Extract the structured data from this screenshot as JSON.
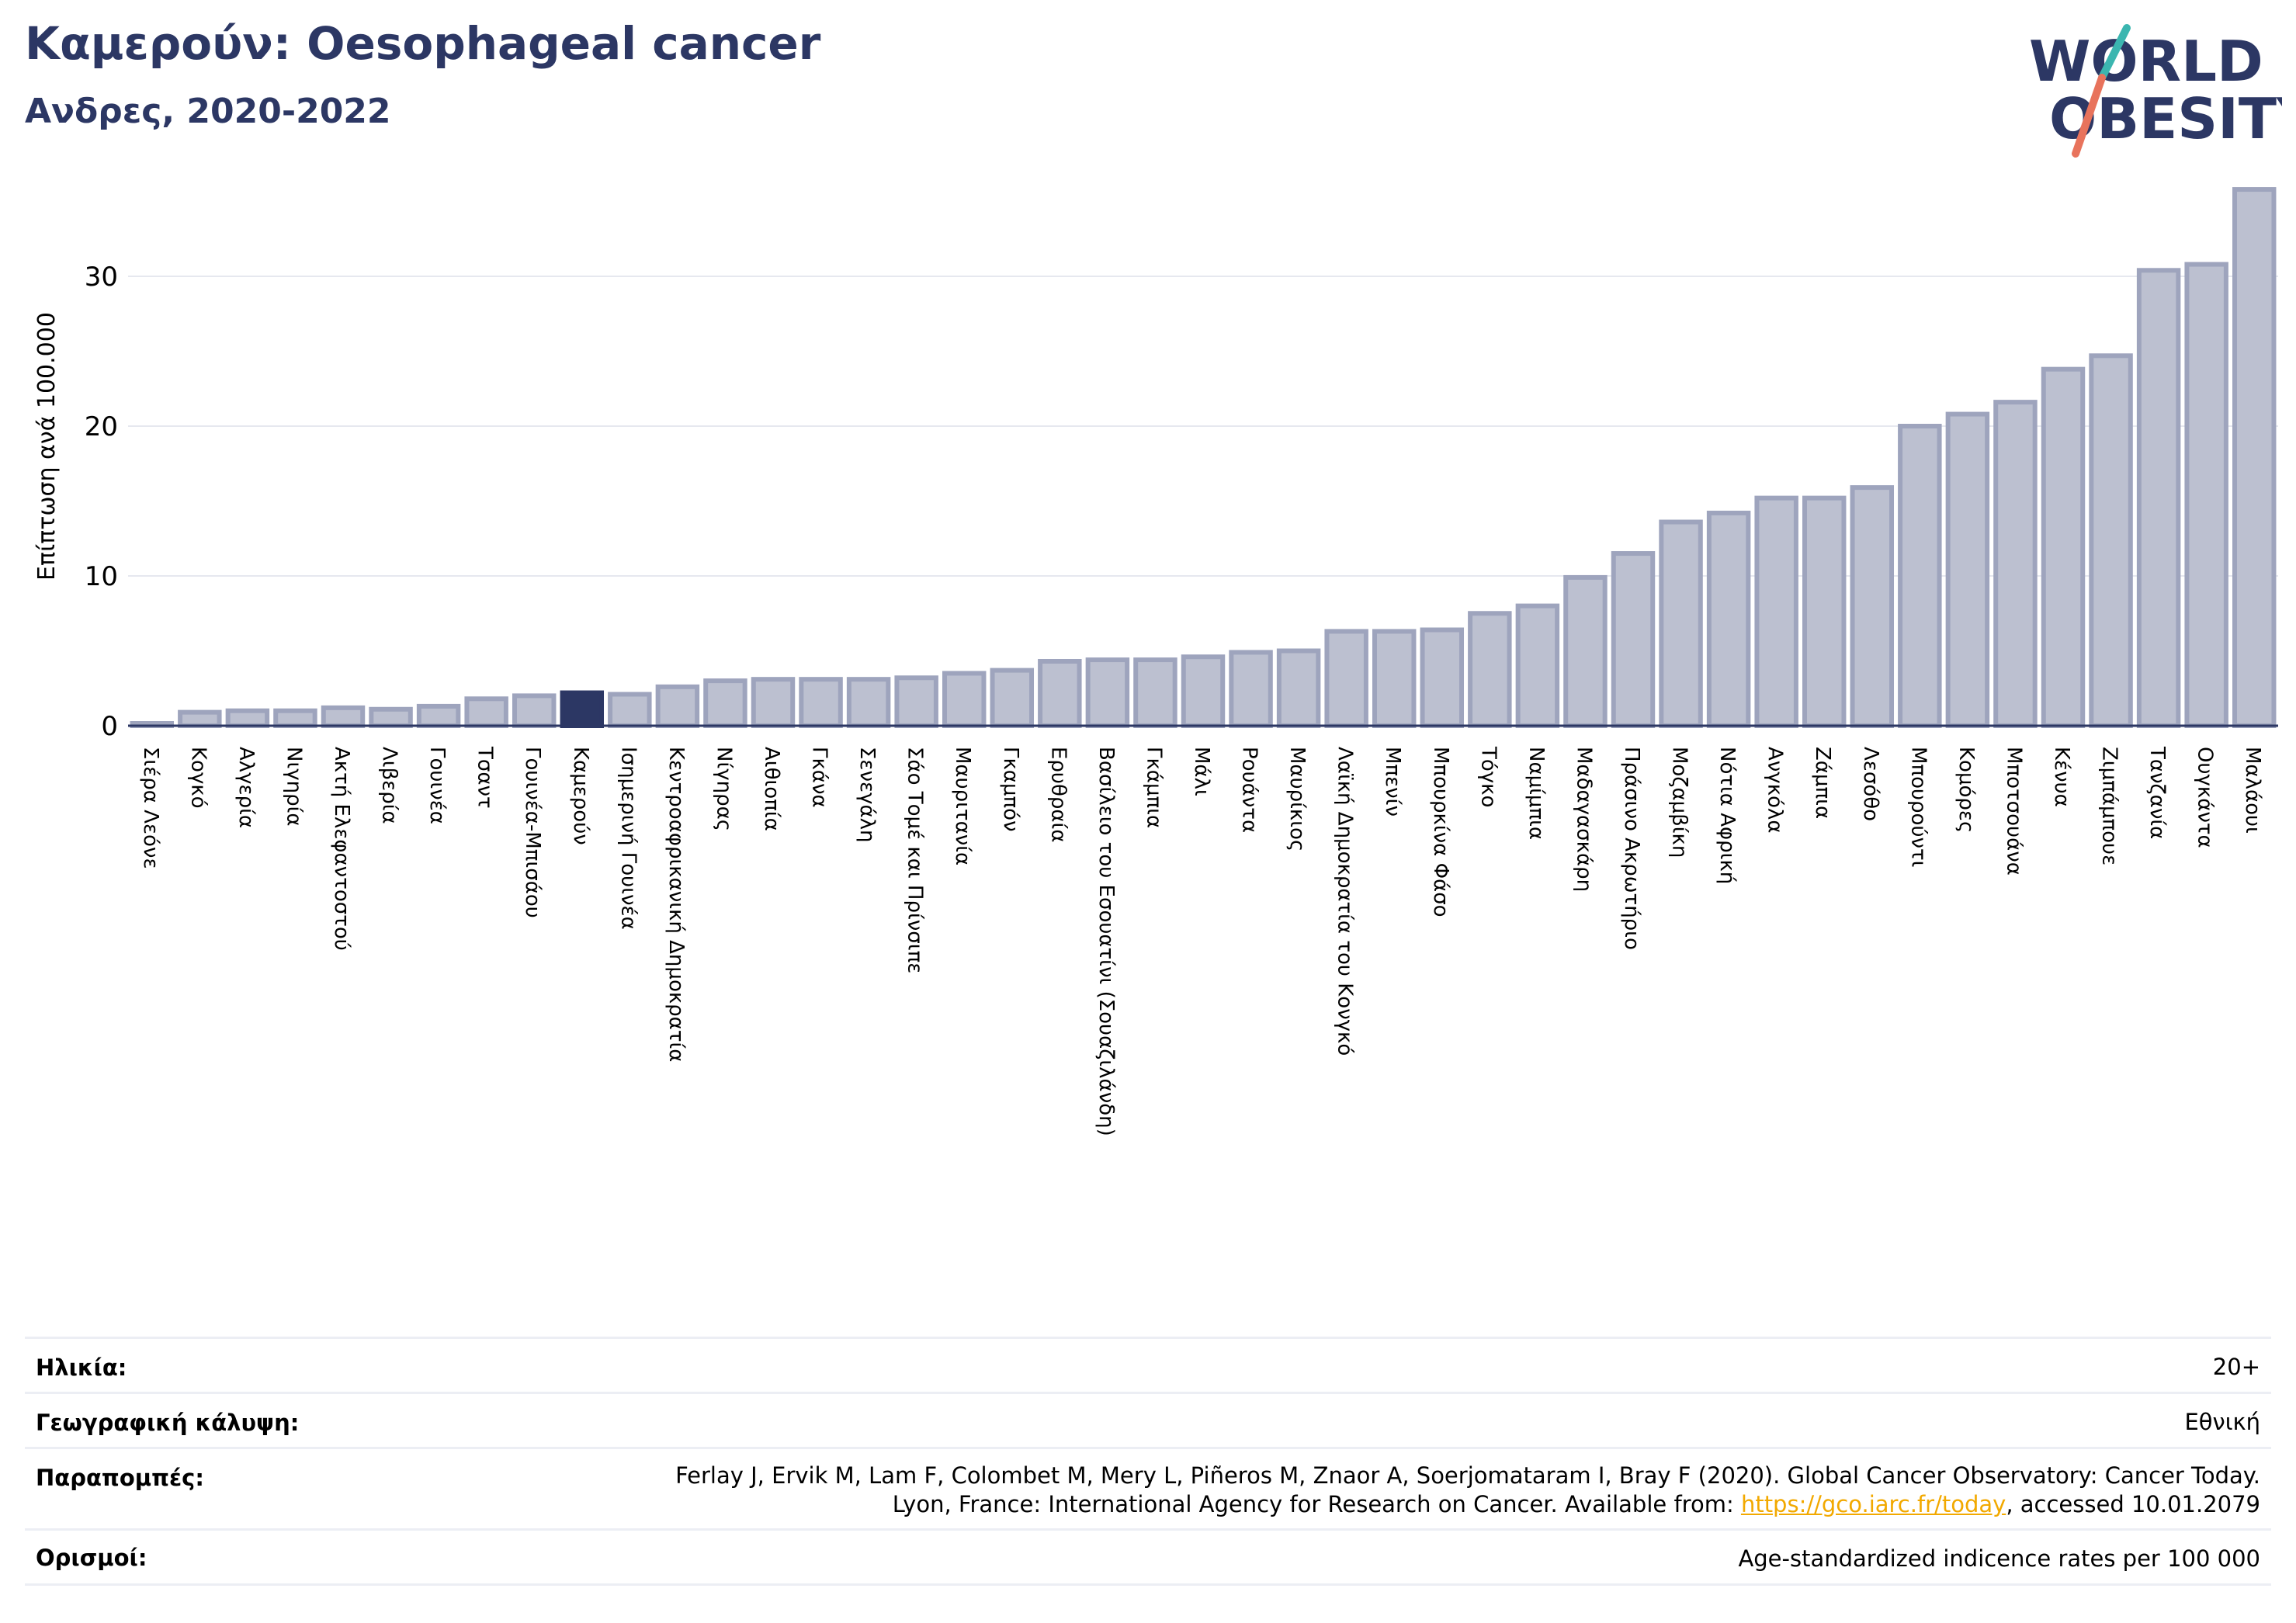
{
  "header": {
    "title": "Καμερούν: Oesophageal cancer",
    "subtitle": "Ανδρες, 2020-2022"
  },
  "logo": {
    "line1": "WORLD",
    "line2": "OBESITY"
  },
  "chart_data": {
    "type": "bar",
    "ylabel": "Επίπτωση ανά 100.000",
    "ylim": [
      0,
      36
    ],
    "yticks": [
      0,
      10,
      20,
      30
    ],
    "grid": true,
    "highlight": "Καμερούν",
    "colors": {
      "bar": "#bcc0d0",
      "bar_edge": "#9ea4bd",
      "highlight": "#2c3764",
      "axis": "#2c3764",
      "grid": "#e6e8ef"
    },
    "categories": [
      "Σιέρα Λεόνε",
      "Κογκό",
      "Αλγερία",
      "Νιγηρία",
      "Ακτή Ελεφαντοστού",
      "Λιβερία",
      "Γουινέα",
      "Τσαντ",
      "Γουινέα-Μπισάου",
      "Καμερούν",
      "Ισημερινή Γουινέα",
      "Κεντροαφρικανική Δημοκρατία",
      "Νίγηρας",
      "Αιθιοπία",
      "Γκάνα",
      "Σενεγάλη",
      "Σάο Τομέ και Πρίνσιπε",
      "Μαυριτανία",
      "Γκαμπόν",
      "Ερυθραία",
      "Βασίλειο του Εσουατίνι (Σουαζιλάνδη)",
      "Γκάμπια",
      "Μάλι",
      "Ρουάντα",
      "Μαυρίκιος",
      "Λαϊκή Δημοκρατία του Κονγκό",
      "Μπενίν",
      "Μπουρκίνα Φάσο",
      "Τόγκο",
      "Ναμίμπια",
      "Μαδαγασκάρη",
      "Πράσινο Ακρωτήριο",
      "Μοζαμβίκη",
      "Νότια Αφρική",
      "Ανγκόλα",
      "Ζάμπια",
      "Λεσόθο",
      "Μπουρούντι",
      "Κομόρες",
      "Μποτσουάνα",
      "Κένυα",
      "Ζιμπάμπουε",
      "Τανζανία",
      "Ουγκάντα",
      "Μαλάουι"
    ],
    "values": [
      0.1,
      0.9,
      1.0,
      1.0,
      1.2,
      1.1,
      1.3,
      1.8,
      2.0,
      2.2,
      2.1,
      2.6,
      3.0,
      3.1,
      3.1,
      3.1,
      3.2,
      3.5,
      3.7,
      4.3,
      4.4,
      4.4,
      4.6,
      4.9,
      5.0,
      6.3,
      6.3,
      6.4,
      7.5,
      8.0,
      9.9,
      11.5,
      13.6,
      14.2,
      15.2,
      15.2,
      15.9,
      20.0,
      20.8,
      21.6,
      23.8,
      24.7,
      30.4,
      30.8,
      35.8
    ]
  },
  "info": {
    "age_label": "Ηλικία:",
    "age_value": "20+",
    "coverage_label": "Γεωγραφική κάλυψη:",
    "coverage_value": "Εθνική",
    "refs_label": "Παραπομπές:",
    "refs_line1": "Ferlay J, Ervik M, Lam F, Colombet M, Mery L, Piñeros M, Znaor A, Soerjomataram I, Bray F (2020). Global Cancer Observatory: Cancer Today.",
    "refs_line2_pre": "Lyon, France: International Agency for Research on Cancer. Available from: ",
    "refs_link": "https://gco.iarc.fr/today",
    "refs_line2_post": ", accessed 10.01.2079",
    "defs_label": "Ορισμοί:",
    "defs_value": "Age-standardized indicence rates per 100 000"
  }
}
